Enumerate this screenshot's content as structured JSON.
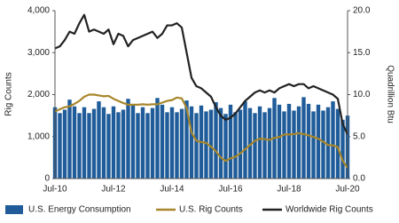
{
  "chart_data": {
    "type": "bar-line",
    "y_label": "Rig Counts",
    "y2_label": "Quadrillion Btu",
    "categories": [
      "Jul-10",
      null,
      null,
      null,
      null,
      null,
      null,
      null,
      null,
      null,
      null,
      null,
      "Jul-12",
      null,
      null,
      null,
      null,
      null,
      null,
      null,
      null,
      null,
      null,
      null,
      "Jul-14",
      null,
      null,
      null,
      null,
      null,
      null,
      null,
      null,
      null,
      null,
      null,
      "Jul-16",
      null,
      null,
      null,
      null,
      null,
      null,
      null,
      null,
      null,
      null,
      null,
      "Jul-18",
      null,
      null,
      null,
      null,
      null,
      null,
      null,
      null,
      null,
      null,
      null,
      "Jul-20"
    ],
    "series": [
      {
        "name": "U.S. Energy Consumption",
        "type": "bar",
        "axis": "y2",
        "color": "#1f5c99",
        "values": [
          8.5,
          7.8,
          8.2,
          9.4,
          8.6,
          7.8,
          8.5,
          7.8,
          8.3,
          9.2,
          8.5,
          7.7,
          8.6,
          7.9,
          8.2,
          9.5,
          8.7,
          7.8,
          8.5,
          7.8,
          8.4,
          9.6,
          8.8,
          7.9,
          8.5,
          7.9,
          8.3,
          9.3,
          8.6,
          7.8,
          8.7,
          8.0,
          8.2,
          9.1,
          8.4,
          7.7,
          8.8,
          7.9,
          8.2,
          9.2,
          8.4,
          7.8,
          8.6,
          7.9,
          8.4,
          9.6,
          8.8,
          8.0,
          8.9,
          8.1,
          8.6,
          9.7,
          8.9,
          8.0,
          8.8,
          8.1,
          8.5,
          9.2,
          8.3,
          7.0,
          7.5
        ]
      },
      {
        "name": "U.S. Rig Counts",
        "type": "line",
        "color": "#a8862a",
        "values": [
          1600,
          1650,
          1700,
          1720,
          1780,
          1850,
          1950,
          2000,
          2000,
          1980,
          1960,
          1970,
          1900,
          1850,
          1800,
          1760,
          1760,
          1760,
          1770,
          1760,
          1770,
          1770,
          1810,
          1850,
          1870,
          1930,
          1910,
          1680,
          1100,
          900,
          870,
          850,
          760,
          650,
          500,
          420,
          480,
          520,
          600,
          700,
          800,
          900,
          950,
          940,
          920,
          970,
          990,
          1050,
          1050,
          1060,
          1080,
          1060,
          1030,
          990,
          950,
          880,
          800,
          790,
          750,
          420,
          250
        ]
      },
      {
        "name": "Worldwide Rig Counts",
        "type": "line",
        "color": "#222222",
        "values": [
          3100,
          3150,
          3300,
          3500,
          3450,
          3700,
          3900,
          3500,
          3550,
          3500,
          3450,
          3550,
          3200,
          3450,
          3400,
          3150,
          3300,
          3350,
          3400,
          3450,
          3500,
          3350,
          3450,
          3650,
          3650,
          3700,
          3600,
          3000,
          2400,
          2200,
          2150,
          2050,
          1950,
          1700,
          1500,
          1400,
          1450,
          1550,
          1700,
          1850,
          1950,
          2050,
          2100,
          2050,
          2100,
          2050,
          2150,
          2200,
          2250,
          2200,
          2250,
          2250,
          2150,
          2200,
          2150,
          2100,
          2050,
          2000,
          1900,
          1300,
          1050
        ]
      }
    ],
    "ylim": [
      0,
      4000
    ],
    "yticks": [
      0,
      {
        "value": 1000,
        "label": "1,000"
      },
      {
        "value": 2000,
        "label": "2,000"
      },
      {
        "value": 3000,
        "label": "3,000"
      },
      {
        "value": 4000,
        "label": "4,000"
      }
    ],
    "y2lim": [
      0,
      20
    ],
    "y2ticks": [
      {
        "value": 0,
        "label": "0.0"
      },
      {
        "value": 5,
        "label": "5.0"
      },
      {
        "value": 10,
        "label": "10.0"
      },
      {
        "value": 15,
        "label": "15.0"
      },
      {
        "value": 20,
        "label": "20.0"
      }
    ],
    "legend": "bottom"
  }
}
